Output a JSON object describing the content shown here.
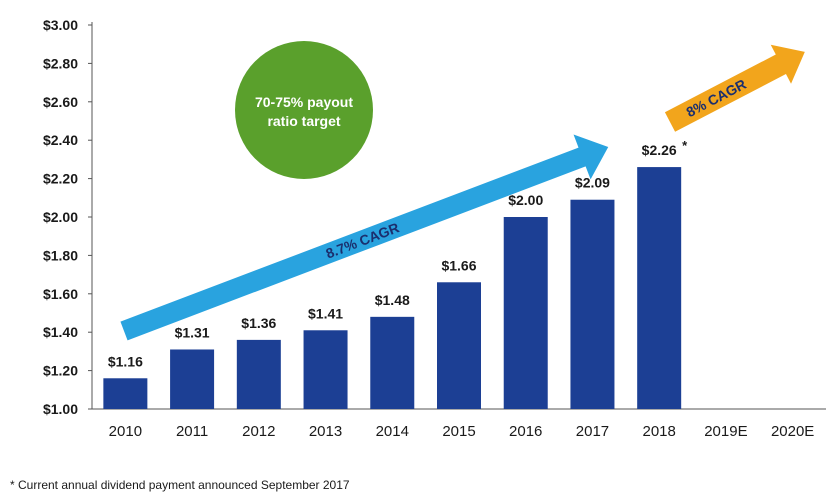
{
  "chart_data": {
    "type": "bar",
    "categories": [
      "2010",
      "2011",
      "2012",
      "2013",
      "2014",
      "2015",
      "2016",
      "2017",
      "2018",
      "2019E",
      "2020E"
    ],
    "values": [
      1.16,
      1.31,
      1.36,
      1.41,
      1.48,
      1.66,
      2.0,
      2.09,
      2.26,
      null,
      null
    ],
    "data_labels": [
      "$1.16",
      "$1.31",
      "$1.36",
      "$1.41",
      "$1.48",
      "$1.66",
      "$2.00",
      "$2.09",
      "$2.26",
      null,
      null
    ],
    "footnote_marker_category": "2018",
    "footnote_marker": "*",
    "ylim": [
      1.0,
      3.0
    ],
    "y_ticks": [
      "$1.00",
      "$1.20",
      "$1.40",
      "$1.60",
      "$1.80",
      "$2.00",
      "$2.20",
      "$2.40",
      "$2.60",
      "$2.80",
      "$3.00"
    ],
    "grid": false,
    "bar_color": "#1c3f94",
    "annotations": {
      "cagr_historical": {
        "label": "8.7% CAGR",
        "color": "#29a3df"
      },
      "cagr_forecast": {
        "label": "8% CAGR",
        "color": "#f2a51c"
      },
      "payout_circle": {
        "line1": "70-75% payout",
        "line2": "ratio target",
        "color": "#5aa02c"
      }
    }
  },
  "footnote": "* Current annual dividend payment announced September 2017"
}
